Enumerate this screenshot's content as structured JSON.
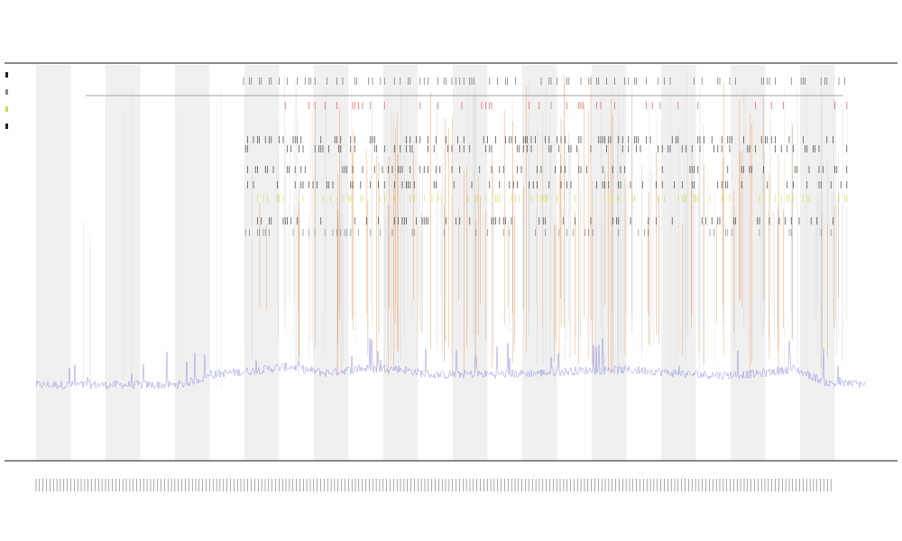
{
  "chart_data": {
    "type": "line",
    "title": "",
    "title_lines": [
      "",
      "",
      ""
    ],
    "xlabel": "",
    "ylabel": "",
    "x_tick_count": 230,
    "band_count": 12,
    "grid": false,
    "legend_position": "top-left",
    "colors": {
      "background": "#ffffff",
      "band": "#f0f0f0",
      "trace": "#5a5ad8",
      "spike_orange": "#e8843a",
      "spike_red": "#e04040",
      "marker_black": "#222222",
      "marker_yellow": "#d8d840",
      "axis": "#333333"
    },
    "legend": [
      {
        "label": "",
        "color": "#222222"
      },
      {
        "label": "",
        "color": "#888888"
      },
      {
        "label": "",
        "color": "#d8d840"
      },
      {
        "label": "",
        "color": "#222222"
      }
    ],
    "series": [
      {
        "name": "",
        "baseline": [
          0.07,
          0.07,
          0.07,
          0.07,
          0.07,
          0.17,
          0.2,
          0.24,
          0.18,
          0.22,
          0.22,
          0.16,
          0.17,
          0.17,
          0.18,
          0.2,
          0.21,
          0.2,
          0.17,
          0.16,
          0.17,
          0.22,
          0.08,
          0.08
        ]
      }
    ]
  }
}
